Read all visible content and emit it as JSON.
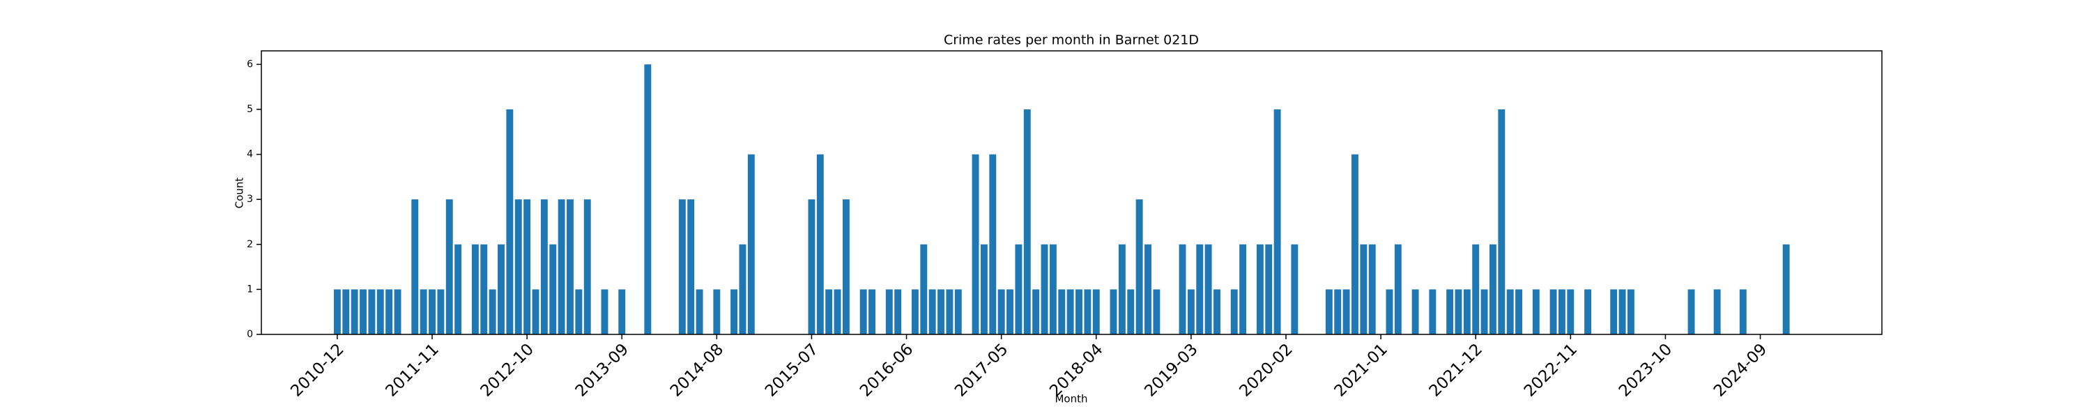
{
  "chart_data": {
    "type": "bar",
    "title": "Crime rates per month in Barnet 021D",
    "x_label": "Month",
    "y_label": "Count",
    "color": "#1f77b4",
    "categories": [
      "2010-12",
      null,
      null,
      null,
      null,
      null,
      null,
      null,
      null,
      null,
      null,
      "2011-11",
      null,
      null,
      null,
      null,
      null,
      null,
      null,
      null,
      null,
      null,
      "2012-10",
      null,
      null,
      null,
      null,
      null,
      null,
      null,
      null,
      null,
      null,
      "2013-09",
      null,
      null,
      null,
      null,
      null,
      null,
      null,
      null,
      null,
      null,
      "2014-08",
      null,
      null,
      null,
      null,
      null,
      null,
      null,
      null,
      null,
      null,
      "2015-07",
      null,
      null,
      null,
      null,
      null,
      null,
      null,
      null,
      null,
      null,
      "2016-06",
      null,
      null,
      null,
      null,
      null,
      null,
      null,
      null,
      null,
      null,
      "2017-05",
      null,
      null,
      null,
      null,
      null,
      null,
      null,
      null,
      null,
      null,
      "2018-04",
      null,
      null,
      null,
      null,
      null,
      null,
      null,
      null,
      null,
      null,
      "2019-03",
      null,
      null,
      null,
      null,
      null,
      null,
      null,
      null,
      null,
      null,
      "2020-02",
      null,
      null,
      null,
      null,
      null,
      null,
      null,
      null,
      null,
      null,
      "2021-01",
      null,
      null,
      null,
      null,
      null,
      null,
      null,
      null,
      null,
      null,
      "2021-12",
      null,
      null,
      null,
      null,
      null,
      null,
      null,
      null,
      null,
      null,
      "2022-11",
      null,
      null,
      null,
      null,
      null,
      null,
      null,
      null,
      null,
      null,
      "2023-10",
      null,
      null,
      null,
      null,
      null,
      null,
      null,
      null,
      null,
      null,
      "2024-09",
      null,
      null,
      null
    ],
    "values": [
      1,
      1,
      1,
      1,
      1,
      1,
      1,
      1,
      0,
      3,
      1,
      1,
      1,
      3,
      2,
      0,
      2,
      2,
      1,
      2,
      5,
      3,
      3,
      1,
      3,
      2,
      3,
      3,
      1,
      3,
      0,
      1,
      0,
      1,
      0,
      0,
      6,
      0,
      0,
      0,
      3,
      3,
      1,
      0,
      1,
      0,
      1,
      2,
      4,
      0,
      0,
      0,
      0,
      0,
      0,
      3,
      4,
      1,
      1,
      3,
      0,
      1,
      1,
      0,
      1,
      1,
      0,
      1,
      2,
      1,
      1,
      1,
      1,
      0,
      4,
      2,
      4,
      1,
      1,
      2,
      5,
      1,
      2,
      2,
      1,
      1,
      1,
      1,
      1,
      0,
      1,
      2,
      1,
      3,
      2,
      1,
      0,
      0,
      2,
      1,
      2,
      2,
      1,
      0,
      1,
      2,
      0,
      2,
      2,
      5,
      0,
      2,
      0,
      0,
      0,
      1,
      1,
      1,
      4,
      2,
      2,
      0,
      1,
      2,
      0,
      1,
      0,
      1,
      0,
      1,
      1,
      1,
      2,
      1,
      2,
      5,
      1,
      1,
      0,
      1,
      0,
      1,
      1,
      1,
      0,
      1,
      0,
      0,
      1,
      1,
      1,
      0,
      0,
      0,
      0,
      0,
      0,
      1,
      0,
      0,
      1,
      0,
      0,
      1,
      0,
      0,
      0,
      0,
      2
    ],
    "ylim": [
      0,
      6.3
    ],
    "yticks": [
      0,
      1,
      2,
      3,
      4,
      5,
      6
    ],
    "grid": false
  }
}
